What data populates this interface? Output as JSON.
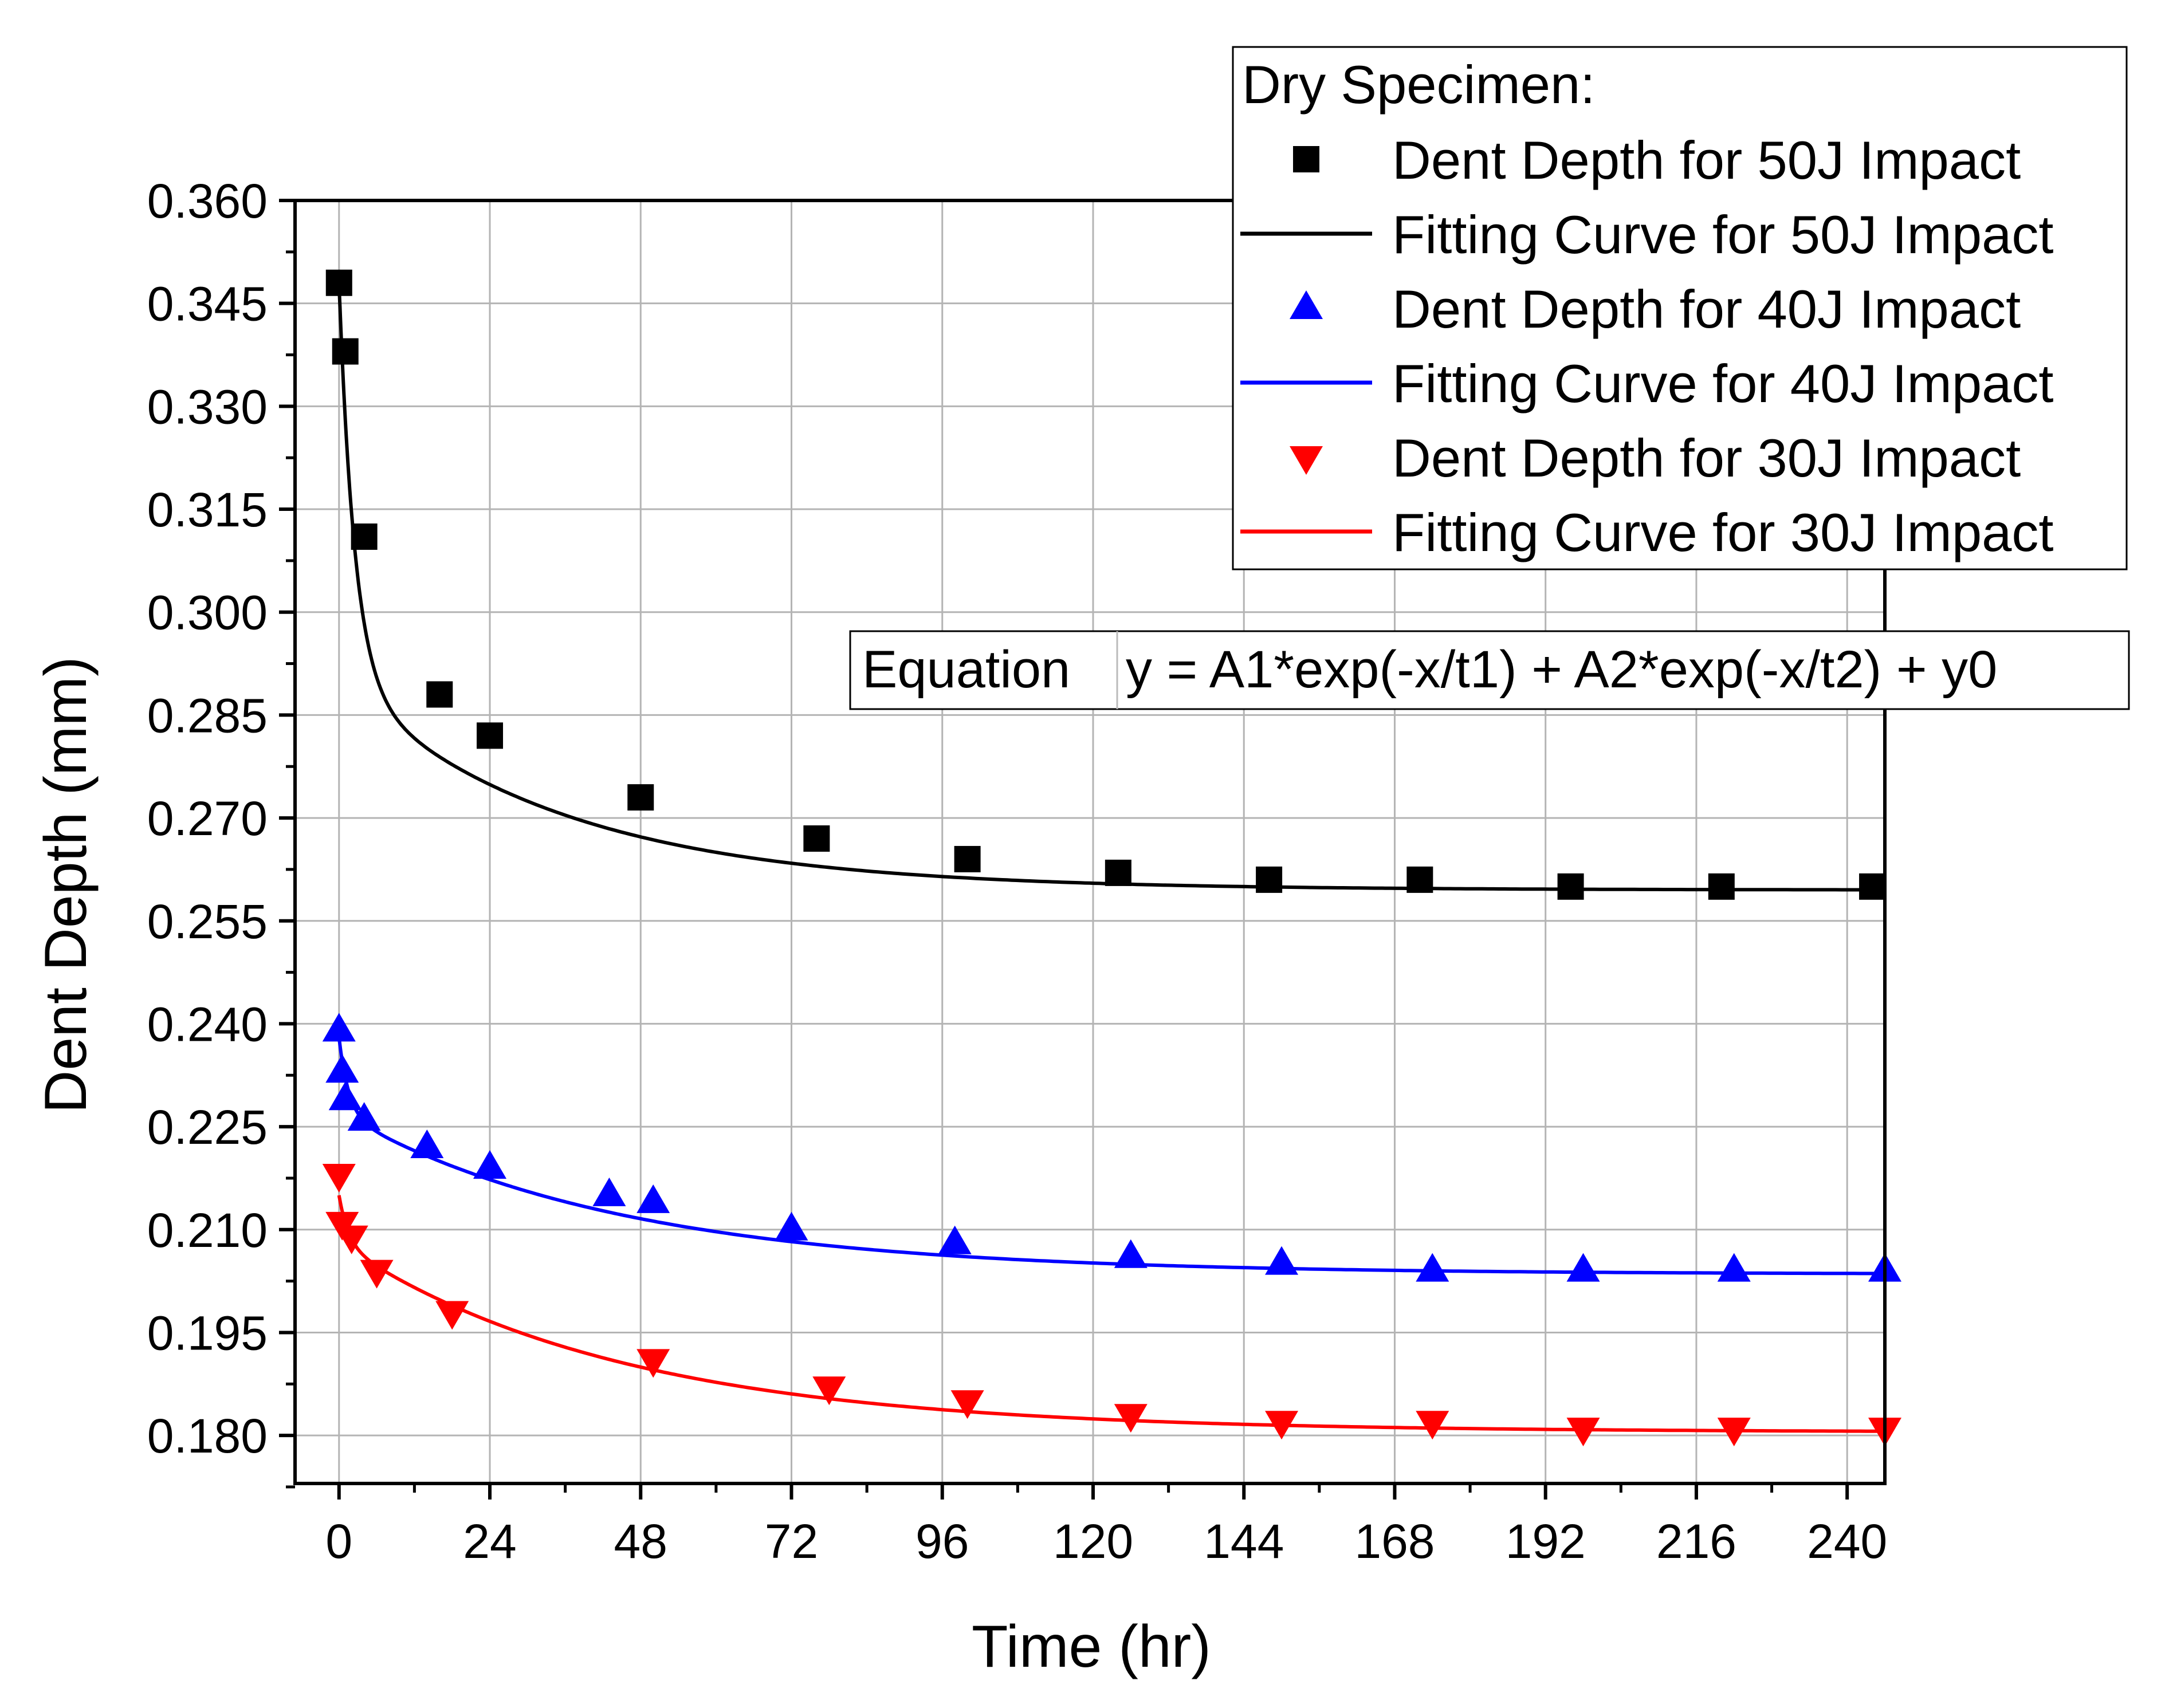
{
  "chart_data": {
    "type": "scatter",
    "xlabel": "Time (hr)",
    "ylabel": "Dent Depth (mm)",
    "xlim": [
      -7,
      246
    ],
    "ylim": [
      0.173,
      0.36
    ],
    "xticks": [
      0,
      24,
      48,
      72,
      96,
      120,
      144,
      168,
      192,
      216,
      240
    ],
    "xtick_labels": [
      "0",
      "24",
      "48",
      "72",
      "96",
      "120",
      "144",
      "168",
      "192",
      "216",
      "240"
    ],
    "yticks": [
      0.18,
      0.195,
      0.21,
      0.225,
      0.24,
      0.255,
      0.27,
      0.285,
      0.3,
      0.315,
      0.33,
      0.345,
      0.36
    ],
    "ytick_labels": [
      "0.180",
      "0.195",
      "0.210",
      "0.225",
      "0.240",
      "0.255",
      "0.270",
      "0.285",
      "0.300",
      "0.315",
      "0.330",
      "0.345",
      "0.360"
    ],
    "grid": true,
    "legend": {
      "title": "Dry Specimen:",
      "position": "top-right",
      "entries": [
        {
          "label": "Dent Depth for 50J Impact",
          "kind": "marker",
          "series": 0
        },
        {
          "label": "Fitting Curve for 50J Impact",
          "kind": "line",
          "series": 0
        },
        {
          "label": "Dent Depth for 40J Impact",
          "kind": "marker",
          "series": 1
        },
        {
          "label": "Fitting Curve for 40J Impact",
          "kind": "line",
          "series": 1
        },
        {
          "label": "Dent Depth for 30J Impact",
          "kind": "marker",
          "series": 2
        },
        {
          "label": "Fitting Curve for 30J Impact",
          "kind": "line",
          "series": 2
        }
      ]
    },
    "equation": {
      "label": "Equation",
      "formula": "y = A1*exp(-x/t1) + A2*exp(-x/t2) + y0"
    },
    "series": [
      {
        "name": "Dent Depth for 50J Impact",
        "color": "#000000",
        "marker": "square",
        "x": [
          0,
          1,
          4,
          16,
          24,
          48,
          76,
          100,
          124,
          148,
          172,
          196,
          220,
          244
        ],
        "y": [
          0.348,
          0.338,
          0.311,
          0.288,
          0.282,
          0.273,
          0.267,
          0.264,
          0.262,
          0.261,
          0.261,
          0.26,
          0.26,
          0.26
        ],
        "fit": {
          "A1": 0.058,
          "t1": 2.5,
          "A2": 0.0305,
          "t2": 35,
          "y0": 0.2595
        }
      },
      {
        "name": "Dent Depth for 40J Impact",
        "color": "#0000ff",
        "marker": "triangle-up",
        "x": [
          0,
          0.5,
          1,
          4,
          14,
          24,
          43,
          50,
          72,
          98,
          126,
          150,
          174,
          198,
          222,
          246
        ],
        "y": [
          0.239,
          0.233,
          0.229,
          0.226,
          0.222,
          0.219,
          0.215,
          0.214,
          0.21,
          0.208,
          0.206,
          0.205,
          0.204,
          0.204,
          0.204,
          0.204
        ],
        "fit": {
          "A1": 0.011,
          "t1": 1.5,
          "A2": 0.0235,
          "t2": 45,
          "y0": 0.2035
        }
      },
      {
        "name": "Dent Depth for 30J Impact",
        "color": "#ff0000",
        "marker": "triangle-down",
        "x": [
          0,
          0.5,
          2,
          6,
          18,
          50,
          78,
          100,
          126,
          150,
          174,
          198,
          222,
          246
        ],
        "y": [
          0.218,
          0.211,
          0.209,
          0.204,
          0.198,
          0.191,
          0.187,
          0.185,
          0.183,
          0.182,
          0.182,
          0.181,
          0.181,
          0.181
        ],
        "fit": {
          "A1": 0.007,
          "t1": 1.5,
          "A2": 0.0275,
          "t2": 45,
          "y0": 0.1805
        }
      }
    ]
  }
}
